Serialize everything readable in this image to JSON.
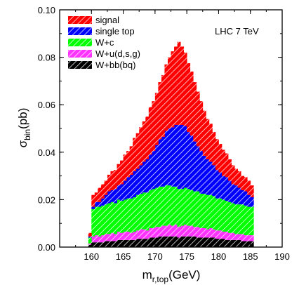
{
  "chart_data": {
    "type": "area",
    "title": "",
    "annotation": "LHC 7 TeV",
    "ylabel_main": "σ",
    "ylabel_sub": "bin",
    "ylabel_unit": "(pb)",
    "xlabel_main": "m",
    "xlabel_sub": "r,top",
    "xlabel_unit": "(GeV)",
    "xlim": [
      155,
      190
    ],
    "ylim": [
      0.0,
      0.1
    ],
    "xticks": [
      160,
      165,
      170,
      175,
      180,
      185,
      190
    ],
    "yticks": [
      "0.00",
      "0.02",
      "0.04",
      "0.06",
      "0.08",
      "0.10"
    ],
    "x": [
      159.5,
      160,
      160.5,
      161,
      161.5,
      162,
      162.5,
      163,
      163.5,
      164,
      164.5,
      165,
      165.5,
      166,
      166.5,
      167,
      167.5,
      168,
      168.5,
      169,
      169.5,
      170,
      170.5,
      171,
      171.5,
      172,
      172.5,
      173,
      173.5,
      174,
      174.5,
      175,
      175.5,
      176,
      176.5,
      177,
      177.5,
      178,
      178.5,
      179,
      179.5,
      180,
      180.5,
      181,
      181.5,
      182,
      182.5,
      183,
      183.5,
      184,
      184.5,
      185
    ],
    "series": [
      {
        "name": "W+bb(bq)",
        "color": "#000000",
        "values": [
          0.001,
          0.002,
          0.002,
          0.002,
          0.002,
          0.0025,
          0.0025,
          0.0025,
          0.0025,
          0.003,
          0.003,
          0.003,
          0.003,
          0.003,
          0.003,
          0.0035,
          0.0035,
          0.0035,
          0.0035,
          0.004,
          0.004,
          0.004,
          0.0045,
          0.0045,
          0.0045,
          0.0045,
          0.0045,
          0.0045,
          0.004,
          0.0045,
          0.0045,
          0.0045,
          0.0045,
          0.0045,
          0.004,
          0.004,
          0.004,
          0.004,
          0.004,
          0.004,
          0.0035,
          0.0035,
          0.0035,
          0.003,
          0.003,
          0.003,
          0.003,
          0.003,
          0.0025,
          0.0025,
          0.0025,
          0.0025
        ]
      },
      {
        "name": "W+u(d,s,g)",
        "color": "#ff33ff",
        "values": [
          0.0005,
          0.0025,
          0.003,
          0.0025,
          0.003,
          0.003,
          0.003,
          0.0035,
          0.003,
          0.0035,
          0.003,
          0.0035,
          0.0035,
          0.003,
          0.0035,
          0.0035,
          0.004,
          0.004,
          0.0035,
          0.004,
          0.004,
          0.0045,
          0.004,
          0.0045,
          0.0045,
          0.005,
          0.0045,
          0.005,
          0.0045,
          0.0045,
          0.005,
          0.0045,
          0.0045,
          0.004,
          0.0045,
          0.004,
          0.004,
          0.0035,
          0.004,
          0.0035,
          0.0035,
          0.0035,
          0.003,
          0.0035,
          0.003,
          0.003,
          0.0025,
          0.0025,
          0.003,
          0.0025,
          0.0025,
          0.0025
        ]
      },
      {
        "name": "W+c",
        "color": "#00ff00",
        "values": [
          0.0025,
          0.0115,
          0.012,
          0.0125,
          0.0125,
          0.0125,
          0.013,
          0.013,
          0.013,
          0.0135,
          0.0135,
          0.0135,
          0.014,
          0.0145,
          0.0145,
          0.015,
          0.015,
          0.0155,
          0.016,
          0.016,
          0.0165,
          0.0165,
          0.017,
          0.0165,
          0.017,
          0.0165,
          0.0165,
          0.016,
          0.016,
          0.0155,
          0.0155,
          0.0155,
          0.015,
          0.015,
          0.015,
          0.0145,
          0.0145,
          0.0145,
          0.014,
          0.014,
          0.0135,
          0.0135,
          0.0135,
          0.013,
          0.013,
          0.0125,
          0.0125,
          0.0125,
          0.0125,
          0.0125,
          0.012,
          0.012
        ]
      },
      {
        "name": "single top",
        "color": "#0000ff",
        "values": [
          0.0005,
          0.001,
          0.002,
          0.002,
          0.003,
          0.004,
          0.005,
          0.005,
          0.006,
          0.006,
          0.007,
          0.008,
          0.009,
          0.01,
          0.011,
          0.011,
          0.012,
          0.013,
          0.014,
          0.015,
          0.016,
          0.018,
          0.02,
          0.021,
          0.023,
          0.024,
          0.025,
          0.026,
          0.027,
          0.027,
          0.026,
          0.024,
          0.023,
          0.021,
          0.019,
          0.018,
          0.016,
          0.015,
          0.014,
          0.013,
          0.012,
          0.011,
          0.01,
          0.01,
          0.009,
          0.008,
          0.008,
          0.007,
          0.006,
          0.006,
          0.005,
          0.004
        ]
      },
      {
        "name": "signal",
        "color": "#ff0000",
        "values": [
          0.0015,
          0.005,
          0.004,
          0.006,
          0.006,
          0.006,
          0.007,
          0.008,
          0.008,
          0.009,
          0.01,
          0.011,
          0.011,
          0.012,
          0.014,
          0.015,
          0.016,
          0.017,
          0.018,
          0.02,
          0.021,
          0.022,
          0.024,
          0.026,
          0.028,
          0.03,
          0.032,
          0.033,
          0.035,
          0.033,
          0.031,
          0.029,
          0.027,
          0.025,
          0.023,
          0.021,
          0.019,
          0.017,
          0.016,
          0.014,
          0.013,
          0.012,
          0.011,
          0.01,
          0.009,
          0.008,
          0.007,
          0.007,
          0.006,
          0.006,
          0.006,
          0.005
        ]
      }
    ],
    "legend": [
      {
        "name": "signal",
        "color": "#ff0000"
      },
      {
        "name": "single top",
        "color": "#0000ff"
      },
      {
        "name": "W+c",
        "color": "#00ff00"
      },
      {
        "name": "W+u(d,s,g)",
        "color": "#ff33ff"
      },
      {
        "name": "W+bb(bq)",
        "color": "#000000"
      }
    ],
    "legend_placement": "top-left",
    "grid": false
  }
}
